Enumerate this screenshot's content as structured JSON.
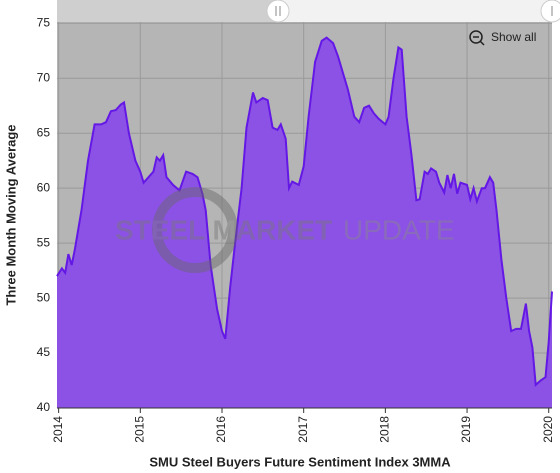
{
  "chart_data": {
    "type": "area",
    "x_axis_title": "SMU Steel Buyers Future Sentiment Index 3MMA",
    "y_axis_title": "Three Month Moving Average",
    "watermark": [
      "STEEL MARKET",
      "UPDATE"
    ],
    "reset_button": "Show all",
    "xlim": [
      2013.98,
      2020.04
    ],
    "xticks": [
      2014,
      2015,
      2016,
      2017,
      2018,
      2019,
      2020
    ],
    "ylim": [
      40,
      75.3
    ],
    "yticks": [
      40,
      45,
      50,
      55,
      60,
      65,
      70,
      75
    ],
    "grid": true,
    "series": [
      {
        "name": "SMU Steel Buyers Future Sentiment Index 3MMA",
        "color": "#8c52e6",
        "line_color": "#6418e6",
        "x": [
          2013.98,
          2014.04,
          2014.08,
          2014.12,
          2014.16,
          2014.2,
          2014.28,
          2014.36,
          2014.44,
          2014.52,
          2014.58,
          2014.64,
          2014.7,
          2014.76,
          2014.8,
          2014.86,
          2014.94,
          2015.0,
          2015.04,
          2015.1,
          2015.16,
          2015.2,
          2015.24,
          2015.28,
          2015.32,
          2015.4,
          2015.48,
          2015.56,
          2015.64,
          2015.7,
          2015.76,
          2015.8,
          2015.86,
          2015.94,
          2016.0,
          2016.04,
          2016.1,
          2016.16,
          2016.24,
          2016.3,
          2016.38,
          2016.42,
          2016.5,
          2016.56,
          2016.62,
          2016.68,
          2016.72,
          2016.78,
          2016.82,
          2016.86,
          2016.94,
          2017.0,
          2017.06,
          2017.14,
          2017.22,
          2017.28,
          2017.36,
          2017.42,
          2017.48,
          2017.54,
          2017.62,
          2017.68,
          2017.74,
          2017.8,
          2017.86,
          2017.92,
          2018.0,
          2018.04,
          2018.1,
          2018.16,
          2018.2,
          2018.26,
          2018.32,
          2018.38,
          2018.42,
          2018.48,
          2018.52,
          2018.56,
          2018.62,
          2018.66,
          2018.72,
          2018.76,
          2018.8,
          2018.84,
          2018.88,
          2018.92,
          2019.0,
          2019.04,
          2019.08,
          2019.12,
          2019.18,
          2019.22,
          2019.28,
          2019.32,
          2019.36,
          2019.42,
          2019.48,
          2019.54,
          2019.6,
          2019.66,
          2019.72,
          2019.76,
          2019.8,
          2019.84,
          2019.9,
          2019.96,
          2020.0,
          2020.04
        ],
        "values": [
          52,
          52.7,
          52.3,
          54,
          53,
          54.5,
          58,
          62.5,
          65.8,
          65.8,
          66,
          67,
          67.1,
          67.6,
          67.8,
          65,
          62.5,
          61.5,
          60.5,
          61,
          61.5,
          62.8,
          62.5,
          63,
          61,
          60.3,
          59.8,
          61.5,
          61.3,
          61,
          59.5,
          58,
          53,
          49,
          47,
          46.3,
          51,
          55,
          60,
          65.5,
          68.7,
          67.8,
          68.2,
          68,
          65.5,
          65.3,
          65.8,
          64.5,
          60,
          60.6,
          60.3,
          62,
          66.5,
          71.5,
          73.4,
          73.7,
          73.2,
          72,
          70.5,
          69,
          66.5,
          66,
          67.3,
          67.5,
          66.8,
          66.3,
          65.8,
          66.5,
          70,
          72.8,
          72.6,
          66.5,
          63,
          58.9,
          59,
          61.5,
          61.3,
          61.8,
          61.5,
          60.5,
          59.6,
          61.2,
          60,
          61.3,
          59.5,
          60.5,
          60.3,
          59,
          60,
          58.8,
          60,
          60,
          61,
          60.5,
          58,
          53.5,
          50,
          47,
          47.2,
          47.2,
          49.5,
          47,
          45.5,
          42.1,
          42.5,
          42.8,
          46,
          50.6
        ]
      }
    ]
  }
}
